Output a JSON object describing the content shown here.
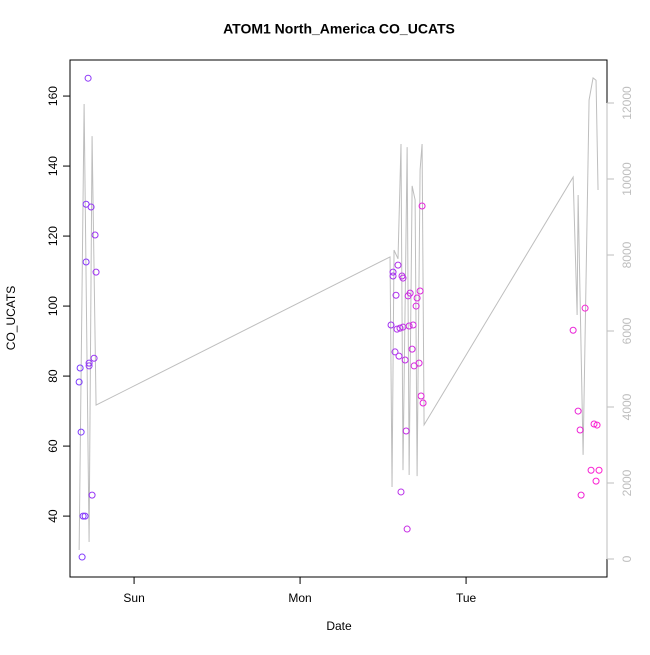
{
  "chart_data": {
    "type": "scatter",
    "title": "ATOM1 North_America CO_UCATS",
    "x_label": "Date",
    "y_label": "CO_UCATS",
    "xlim": [
      -0.386,
      2.849
    ],
    "xticks": [
      {
        "value": 0,
        "label": "Sun"
      },
      {
        "value": 1,
        "label": "Mon"
      },
      {
        "value": 2,
        "label": "Tue"
      }
    ],
    "ylim": [
      22.6,
      170.3
    ],
    "yticks": [
      40,
      60,
      80,
      100,
      120,
      140,
      160
    ],
    "y2lim": [
      -474,
      13132
    ],
    "y2ticks": [
      0,
      2000,
      4000,
      6000,
      8000,
      10000,
      12000
    ],
    "y2_color": "#bebebe",
    "series": [
      {
        "type": "scatter",
        "color_range": [
          "#7a3cff",
          "#ff1fd0"
        ],
        "x": [
          -0.325,
          -0.331,
          -0.319,
          -0.313,
          -0.307,
          -0.295,
          -0.289,
          -0.289,
          -0.277,
          -0.271,
          -0.271,
          -0.259,
          -0.253,
          -0.241,
          -0.235,
          -0.229,
          1.548,
          1.56,
          1.56,
          1.572,
          1.578,
          1.584,
          1.59,
          1.596,
          1.602,
          1.608,
          1.614,
          1.62,
          1.62,
          1.633,
          1.639,
          1.645,
          1.651,
          1.657,
          1.663,
          1.675,
          1.681,
          1.687,
          1.699,
          1.705,
          1.717,
          1.723,
          1.729,
          1.735,
          1.741,
          2.645,
          2.675,
          2.687,
          2.693,
          2.717,
          2.753,
          2.771,
          2.783,
          2.789,
          2.801
        ],
        "values": [
          82.3,
          78.3,
          64,
          28.3,
          40,
          40,
          112.6,
          129.1,
          165.1,
          83.7,
          82.9,
          128.3,
          46,
          85.1,
          120.3,
          109.7,
          94.6,
          109.7,
          108.6,
          86.9,
          103.1,
          93.4,
          111.7,
          85.7,
          93.7,
          46.9,
          108.6,
          108,
          94,
          84.6,
          64.3,
          36.3,
          102.9,
          94.3,
          103.7,
          87.7,
          94.6,
          82.9,
          100,
          102.3,
          83.7,
          104.3,
          74.3,
          128.6,
          72.3,
          93.1,
          70,
          64.6,
          46,
          99.4,
          53.1,
          66.3,
          50,
          66,
          53.1
        ]
      },
      {
        "type": "line",
        "axis": "y2",
        "color": "#bebebe",
        "x": [
          -0.331,
          -0.301,
          -0.271,
          -0.253,
          -0.229,
          1.542,
          1.554,
          1.566,
          1.59,
          1.608,
          1.62,
          1.645,
          1.657,
          1.675,
          1.693,
          1.705,
          1.723,
          1.735,
          1.747,
          2.645,
          2.669,
          2.675,
          2.705,
          2.741,
          2.765,
          2.783,
          2.795
        ],
        "values": [
          237,
          11974,
          447,
          11130,
          4050,
          7950,
          1895,
          8130,
          7900,
          10920,
          2340,
          10840,
          2210,
          9820,
          9450,
          2180,
          10240,
          10920,
          3530,
          10050,
          6420,
          9580,
          2740,
          12080,
          12660,
          12600,
          9710
        ]
      }
    ]
  }
}
